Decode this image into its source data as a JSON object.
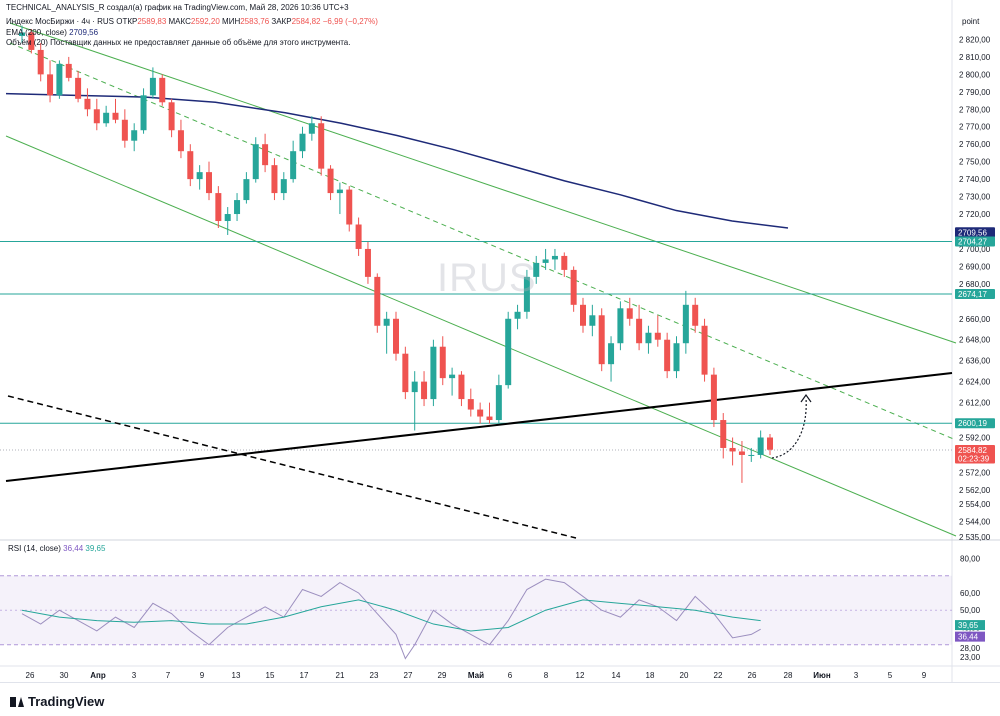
{
  "header": {
    "line1": "TECHNICAL_ANALYSIS_R создал(а) график на TradingView.com, Май 28, 2026 10:36 UTC+3",
    "instrument": "Индекс МосБиржи · 4ч · RUS",
    "open_label": "ОТКР",
    "open": "2589,83",
    "high_label": "МАКС",
    "high": "2592,20",
    "low_label": "МИН",
    "low": "2583,76",
    "close_label": "ЗАКР",
    "close": "2584,82",
    "change": "−6,99 (−0,27%)",
    "ema_label": "EMA (200, close)",
    "ema_value": "2709,56",
    "volume_note": "Объём (20) Поставщик данных не предоставляет данные об объёме для этого инструмента."
  },
  "watermark": "IRUS",
  "rsi_label": "RSI (14, close)",
  "rsi_v1": "36,44",
  "rsi_v2": "39,65",
  "footer": {
    "logo": "TradingView"
  },
  "colors": {
    "up": "#26a69a",
    "down": "#ef5350",
    "ema": "#1e2a78",
    "channel": "#4caf50",
    "hline": "#26a69a",
    "trend": "#000000",
    "rsi_band": "#7e57c2"
  },
  "chart_data": {
    "type": "candlestick",
    "unit": "point",
    "y_range": [
      2535,
      2830
    ],
    "y_ticks": [
      "2 820,00",
      "2 810,00",
      "2 800,00",
      "2 790,00",
      "2 780,00",
      "2 770,00",
      "2 760,00",
      "2 750,00",
      "2 740,00",
      "2 730,00",
      "2 720,00",
      "2 700,00",
      "2 690,00",
      "2 680,00",
      "2 660,00",
      "2 648,00",
      "2 636,00",
      "2 624,00",
      "2 612,00",
      "2 592,00",
      "2 572,00",
      "2 562,00",
      "2 554,00",
      "2 544,00",
      "2 535,00"
    ],
    "y_tick_values": [
      2820,
      2810,
      2800,
      2790,
      2780,
      2770,
      2760,
      2750,
      2740,
      2730,
      2720,
      2700,
      2690,
      2680,
      2660,
      2648,
      2636,
      2624,
      2612,
      2592,
      2572,
      2562,
      2554,
      2544,
      2535
    ],
    "x_ticks": [
      "26",
      "30",
      "Апр",
      "3",
      "7",
      "9",
      "13",
      "15",
      "17",
      "21",
      "23",
      "27",
      "29",
      "Май",
      "6",
      "8",
      "12",
      "14",
      "18",
      "20",
      "22",
      "26",
      "28",
      "Июн",
      "3",
      "5",
      "9"
    ],
    "price_labels": [
      {
        "text": "2709,56",
        "value": 2709.56,
        "kind": "ema"
      },
      {
        "text": "2704,27",
        "value": 2704.27,
        "kind": "hline"
      },
      {
        "text": "2674,17",
        "value": 2674.17,
        "kind": "hline"
      },
      {
        "text": "2600,19",
        "value": 2600.19,
        "kind": "hline"
      },
      {
        "text": "2584,82",
        "value": 2584.82,
        "kind": "last"
      },
      {
        "text": "02:23:39",
        "value": 2580.0,
        "kind": "timer"
      }
    ],
    "horizontal_levels": [
      2704.27,
      2674.17,
      2600.19
    ],
    "ema200": [
      [
        0,
        2789
      ],
      [
        15,
        2788
      ],
      [
        30,
        2787
      ],
      [
        45,
        2784
      ],
      [
        60,
        2778
      ],
      [
        72,
        2772
      ],
      [
        84,
        2765
      ],
      [
        96,
        2757
      ],
      [
        108,
        2748
      ],
      [
        120,
        2739
      ],
      [
        132,
        2731
      ],
      [
        144,
        2722
      ],
      [
        156,
        2716
      ],
      [
        168,
        2712
      ]
    ],
    "candles": [
      [
        0,
        2822,
        2828,
        2818,
        2824
      ],
      [
        1,
        2824,
        2826,
        2812,
        2814
      ],
      [
        2,
        2814,
        2818,
        2796,
        2800
      ],
      [
        3,
        2800,
        2808,
        2784,
        2788
      ],
      [
        4,
        2788,
        2808,
        2786,
        2806
      ],
      [
        5,
        2806,
        2810,
        2796,
        2798
      ],
      [
        6,
        2798,
        2802,
        2784,
        2786
      ],
      [
        7,
        2786,
        2792,
        2776,
        2780
      ],
      [
        8,
        2780,
        2786,
        2768,
        2772
      ],
      [
        9,
        2772,
        2782,
        2770,
        2778
      ],
      [
        10,
        2778,
        2786,
        2772,
        2774
      ],
      [
        11,
        2774,
        2780,
        2758,
        2762
      ],
      [
        12,
        2762,
        2772,
        2756,
        2768
      ],
      [
        13,
        2768,
        2792,
        2766,
        2788
      ],
      [
        14,
        2788,
        2804,
        2786,
        2798
      ],
      [
        15,
        2798,
        2800,
        2782,
        2784
      ],
      [
        16,
        2784,
        2786,
        2764,
        2768
      ],
      [
        17,
        2768,
        2774,
        2752,
        2756
      ],
      [
        18,
        2756,
        2760,
        2736,
        2740
      ],
      [
        19,
        2740,
        2748,
        2734,
        2744
      ],
      [
        20,
        2744,
        2750,
        2728,
        2732
      ],
      [
        21,
        2732,
        2736,
        2712,
        2716
      ],
      [
        22,
        2716,
        2724,
        2708,
        2720
      ],
      [
        23,
        2720,
        2732,
        2716,
        2728
      ],
      [
        24,
        2728,
        2744,
        2726,
        2740
      ],
      [
        25,
        2740,
        2764,
        2738,
        2760
      ],
      [
        26,
        2760,
        2766,
        2744,
        2748
      ],
      [
        27,
        2748,
        2752,
        2728,
        2732
      ],
      [
        28,
        2732,
        2744,
        2728,
        2740
      ],
      [
        29,
        2740,
        2762,
        2738,
        2756
      ],
      [
        30,
        2756,
        2770,
        2752,
        2766
      ],
      [
        31,
        2766,
        2776,
        2762,
        2772
      ],
      [
        32,
        2772,
        2776,
        2742,
        2746
      ],
      [
        33,
        2746,
        2748,
        2728,
        2732
      ],
      [
        34,
        2732,
        2738,
        2720,
        2734
      ],
      [
        35,
        2734,
        2736,
        2710,
        2714
      ],
      [
        36,
        2714,
        2718,
        2696,
        2700
      ],
      [
        37,
        2700,
        2704,
        2680,
        2684
      ],
      [
        38,
        2684,
        2686,
        2652,
        2656
      ],
      [
        39,
        2656,
        2664,
        2640,
        2660
      ],
      [
        40,
        2660,
        2664,
        2636,
        2640
      ],
      [
        41,
        2640,
        2644,
        2614,
        2618
      ],
      [
        42,
        2618,
        2630,
        2596,
        2624
      ],
      [
        43,
        2624,
        2630,
        2610,
        2614
      ],
      [
        44,
        2614,
        2648,
        2610,
        2644
      ],
      [
        45,
        2644,
        2650,
        2622,
        2626
      ],
      [
        46,
        2626,
        2632,
        2616,
        2628
      ],
      [
        47,
        2628,
        2630,
        2610,
        2614
      ],
      [
        48,
        2614,
        2620,
        2604,
        2608
      ],
      [
        49,
        2608,
        2612,
        2600,
        2604
      ],
      [
        50,
        2604,
        2612,
        2600,
        2602
      ],
      [
        51,
        2602,
        2628,
        2600,
        2622
      ],
      [
        52,
        2622,
        2664,
        2620,
        2660
      ],
      [
        53,
        2660,
        2668,
        2654,
        2664
      ],
      [
        54,
        2664,
        2688,
        2660,
        2684
      ],
      [
        55,
        2684,
        2696,
        2680,
        2692
      ],
      [
        56,
        2692,
        2700,
        2688,
        2694
      ],
      [
        57,
        2694,
        2700,
        2688,
        2696
      ],
      [
        58,
        2696,
        2698,
        2684,
        2688
      ],
      [
        59,
        2688,
        2690,
        2664,
        2668
      ],
      [
        60,
        2668,
        2672,
        2652,
        2656
      ],
      [
        61,
        2656,
        2668,
        2650,
        2662
      ],
      [
        62,
        2662,
        2666,
        2630,
        2634
      ],
      [
        63,
        2634,
        2650,
        2624,
        2646
      ],
      [
        64,
        2646,
        2670,
        2642,
        2666
      ],
      [
        65,
        2666,
        2672,
        2656,
        2660
      ],
      [
        66,
        2660,
        2668,
        2642,
        2646
      ],
      [
        67,
        2646,
        2656,
        2640,
        2652
      ],
      [
        68,
        2652,
        2662,
        2644,
        2648
      ],
      [
        69,
        2648,
        2652,
        2626,
        2630
      ],
      [
        70,
        2630,
        2650,
        2626,
        2646
      ],
      [
        71,
        2646,
        2676,
        2640,
        2668
      ],
      [
        72,
        2668,
        2672,
        2652,
        2656
      ],
      [
        73,
        2656,
        2660,
        2624,
        2628
      ],
      [
        74,
        2628,
        2632,
        2598,
        2602
      ],
      [
        75,
        2602,
        2606,
        2580,
        2586
      ],
      [
        76,
        2586,
        2592,
        2576,
        2584
      ],
      [
        77,
        2584,
        2590,
        2566,
        2582
      ],
      [
        78,
        2582,
        2586,
        2578,
        2582
      ],
      [
        79,
        2582,
        2596,
        2580,
        2592
      ],
      [
        80,
        2592,
        2594,
        2582,
        2585
      ]
    ],
    "rsi_axis": {
      "ticks": [
        "80,00",
        "60,00",
        "50,00",
        "40,00",
        "28,00",
        "23,00"
      ],
      "values": [
        80,
        60,
        50,
        40,
        28,
        23
      ],
      "range": [
        20,
        82
      ],
      "band": [
        30,
        70
      ]
    },
    "rsi": [
      [
        0,
        48
      ],
      [
        2,
        42
      ],
      [
        4,
        50
      ],
      [
        6,
        44
      ],
      [
        8,
        38
      ],
      [
        10,
        46
      ],
      [
        12,
        40
      ],
      [
        14,
        54
      ],
      [
        16,
        48
      ],
      [
        18,
        38
      ],
      [
        20,
        30
      ],
      [
        22,
        40
      ],
      [
        24,
        46
      ],
      [
        26,
        52
      ],
      [
        28,
        46
      ],
      [
        30,
        62
      ],
      [
        32,
        58
      ],
      [
        34,
        66
      ],
      [
        36,
        60
      ],
      [
        38,
        48
      ],
      [
        40,
        36
      ],
      [
        41,
        22
      ],
      [
        42,
        30
      ],
      [
        43,
        40
      ],
      [
        44,
        50
      ],
      [
        46,
        42
      ],
      [
        48,
        36
      ],
      [
        50,
        30
      ],
      [
        52,
        44
      ],
      [
        54,
        62
      ],
      [
        56,
        68
      ],
      [
        58,
        66
      ],
      [
        60,
        58
      ],
      [
        62,
        50
      ],
      [
        64,
        46
      ],
      [
        66,
        56
      ],
      [
        68,
        52
      ],
      [
        70,
        44
      ],
      [
        72,
        58
      ],
      [
        74,
        48
      ],
      [
        76,
        34
      ],
      [
        78,
        36
      ],
      [
        79,
        39
      ]
    ],
    "rsi_ma": [
      [
        0,
        50
      ],
      [
        4,
        46
      ],
      [
        8,
        44
      ],
      [
        12,
        43
      ],
      [
        16,
        44
      ],
      [
        20,
        42
      ],
      [
        24,
        42
      ],
      [
        28,
        46
      ],
      [
        32,
        52
      ],
      [
        36,
        56
      ],
      [
        40,
        50
      ],
      [
        44,
        42
      ],
      [
        48,
        38
      ],
      [
        52,
        40
      ],
      [
        56,
        50
      ],
      [
        60,
        56
      ],
      [
        64,
        54
      ],
      [
        68,
        52
      ],
      [
        72,
        50
      ],
      [
        76,
        46
      ],
      [
        79,
        44
      ]
    ]
  }
}
